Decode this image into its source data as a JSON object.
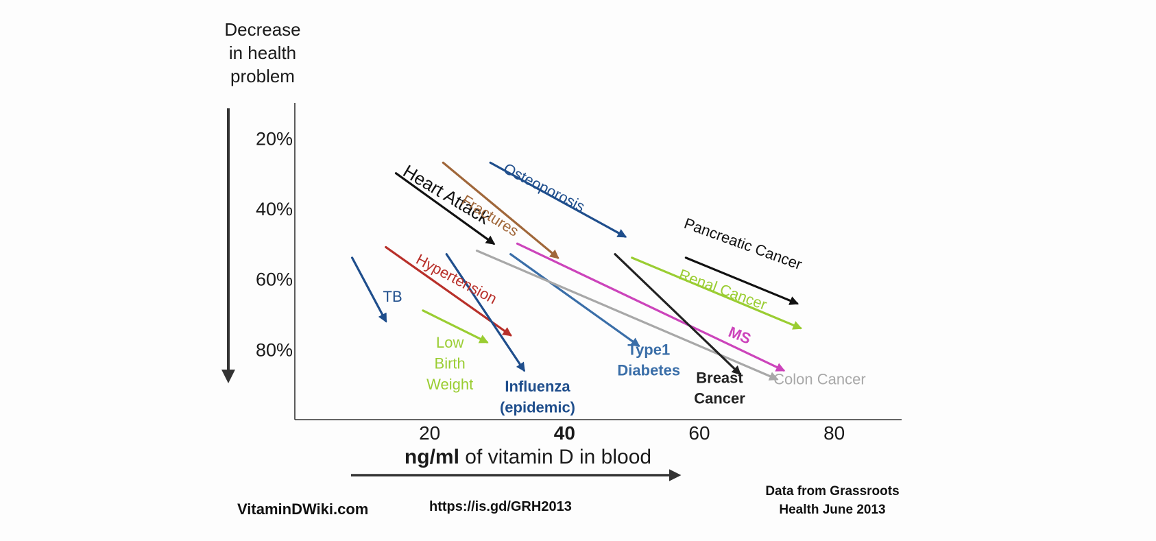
{
  "colors": {
    "axis": "#333333",
    "text": "#1a1a1a",
    "tb": "#1f4e8c",
    "hypertension": "#b8302a",
    "low_birth_weight": "#9acd32",
    "influenza": "#1f4e8c",
    "heart_attack": "#111111",
    "fractures": "#a0673a",
    "osteoporosis": "#1f4e8c",
    "type1_diabetes": "#3a6ea8",
    "ms": "#cc44bb",
    "colon_cancer": "#a8a8a8",
    "breast_cancer": "#222222",
    "renal_cancer": "#9acd32",
    "pancreatic_cancer": "#111111"
  },
  "chart_data": {
    "type": "line",
    "title": "",
    "xlabel_bold": "ng/ml",
    "xlabel_rest": " of vitamin D in blood",
    "ylabel_lines": [
      "Decrease",
      "in health",
      "problem"
    ],
    "x_ticks": [
      {
        "label": "20",
        "value": 20,
        "bold": false
      },
      {
        "label": "40",
        "value": 40,
        "bold": true
      },
      {
        "label": "60",
        "value": 60,
        "bold": false
      },
      {
        "label": "80",
        "value": 80,
        "bold": false
      }
    ],
    "y_ticks": [
      {
        "label": "20%",
        "value": 20
      },
      {
        "label": "40%",
        "value": 40
      },
      {
        "label": "60%",
        "value": 60
      },
      {
        "label": "80%",
        "value": 80
      }
    ],
    "xlim": [
      0,
      90
    ],
    "ylim": [
      10,
      100
    ],
    "grid": false,
    "legend": "none",
    "series": [
      {
        "name": "TB",
        "color_key": "tb",
        "x": [
          8.5,
          13.5
        ],
        "y": [
          54,
          72
        ],
        "label_lines": [
          "TB"
        ],
        "label_x": 14.5,
        "label_y": 65,
        "label_rotate": 0,
        "label_size": 22,
        "label_bold": false,
        "label_anchor": "middle"
      },
      {
        "name": "Hypertension",
        "color_key": "hypertension",
        "x": [
          13.5,
          32
        ],
        "y": [
          51,
          76
        ],
        "label_lines": [
          "Hypertension"
        ],
        "label_x": 24,
        "label_y": 60,
        "label_rotate": 28,
        "label_size": 22,
        "label_bold": false,
        "label_anchor": "middle"
      },
      {
        "name": "Low Birth Weight",
        "color_key": "low_birth_weight",
        "x": [
          19,
          28.5
        ],
        "y": [
          69,
          78
        ],
        "label_lines": [
          "Low",
          "Birth",
          "Weight"
        ],
        "label_x": 23,
        "label_y": 84,
        "label_rotate": 0,
        "label_size": 22,
        "label_bold": false,
        "label_anchor": "middle"
      },
      {
        "name": "Influenza (epidemic)",
        "color_key": "influenza",
        "x": [
          22.5,
          34
        ],
        "y": [
          53,
          86
        ],
        "label_lines": [
          "Influenza",
          "(epidemic)"
        ],
        "label_x": 36,
        "label_y": 93.5,
        "label_rotate": 0,
        "label_size": 22,
        "label_bold": true,
        "label_anchor": "middle"
      },
      {
        "name": "Heart Attack",
        "color_key": "heart_attack",
        "x": [
          15,
          29.5
        ],
        "y": [
          30,
          50
        ],
        "label_lines": [
          "Heart Attack"
        ],
        "label_x": 22.5,
        "label_y": 36,
        "label_rotate": 31,
        "label_size": 26,
        "label_bold": false,
        "label_anchor": "middle"
      },
      {
        "name": "Fractures",
        "color_key": "fractures",
        "x": [
          22,
          39
        ],
        "y": [
          27,
          54
        ],
        "label_lines": [
          "Fractures"
        ],
        "label_x": 29,
        "label_y": 42,
        "label_rotate": 32,
        "label_size": 22,
        "label_bold": false,
        "label_anchor": "middle"
      },
      {
        "name": "Osteoporosis",
        "color_key": "osteoporosis",
        "x": [
          29,
          49
        ],
        "y": [
          27,
          48
        ],
        "label_lines": [
          "Osteoporosis"
        ],
        "label_x": 37,
        "label_y": 34,
        "label_rotate": 27,
        "label_size": 22,
        "label_bold": false,
        "label_anchor": "middle"
      },
      {
        "name": "Type1 Diabetes",
        "color_key": "type1_diabetes",
        "x": [
          32,
          51
        ],
        "y": [
          53,
          79
        ],
        "label_lines": [
          "Type1",
          "Diabetes"
        ],
        "label_x": 52.5,
        "label_y": 83,
        "label_rotate": 0,
        "label_size": 22,
        "label_bold": true,
        "label_anchor": "middle"
      },
      {
        "name": "MS",
        "color_key": "ms",
        "x": [
          33,
          72.5
        ],
        "y": [
          50,
          86
        ],
        "label_lines": [
          "MS"
        ],
        "label_x": 66,
        "label_y": 76,
        "label_rotate": 22,
        "label_size": 22,
        "label_bold": true,
        "label_anchor": "middle"
      },
      {
        "name": "Colon Cancer",
        "color_key": "colon_cancer",
        "x": [
          27,
          71.5
        ],
        "y": [
          52,
          88.5
        ],
        "label_lines": [
          "Colon Cancer"
        ],
        "label_x": 71,
        "label_y": 88.5,
        "label_rotate": 0,
        "label_size": 22,
        "label_bold": false,
        "label_anchor": "start"
      },
      {
        "name": "Breast Cancer",
        "color_key": "breast_cancer",
        "x": [
          47.5,
          66
        ],
        "y": [
          53,
          87
        ],
        "label_lines": [
          "Breast",
          "Cancer"
        ],
        "label_x": 63,
        "label_y": 91,
        "label_rotate": 0,
        "label_size": 22,
        "label_bold": true,
        "label_anchor": "middle"
      },
      {
        "name": "Renal Cancer",
        "color_key": "renal_cancer",
        "x": [
          50,
          75
        ],
        "y": [
          54,
          74
        ],
        "label_lines": [
          "Renal Cancer"
        ],
        "label_x": 63.5,
        "label_y": 63,
        "label_rotate": 20,
        "label_size": 22,
        "label_bold": false,
        "label_anchor": "middle"
      },
      {
        "name": "Pancreatic Cancer",
        "color_key": "pancreatic_cancer",
        "x": [
          58,
          74.5
        ],
        "y": [
          54,
          67
        ],
        "label_lines": [
          "Pancreatic Cancer"
        ],
        "label_x": 66.5,
        "label_y": 50,
        "label_rotate": 20,
        "label_size": 22,
        "label_bold": false,
        "label_anchor": "middle"
      }
    ]
  },
  "footer": {
    "site": "VitaminDWiki.com",
    "url": "https://is.gd/GRH2013",
    "source_line1": "Data from Grassroots",
    "source_line2": "Health June 2013"
  }
}
